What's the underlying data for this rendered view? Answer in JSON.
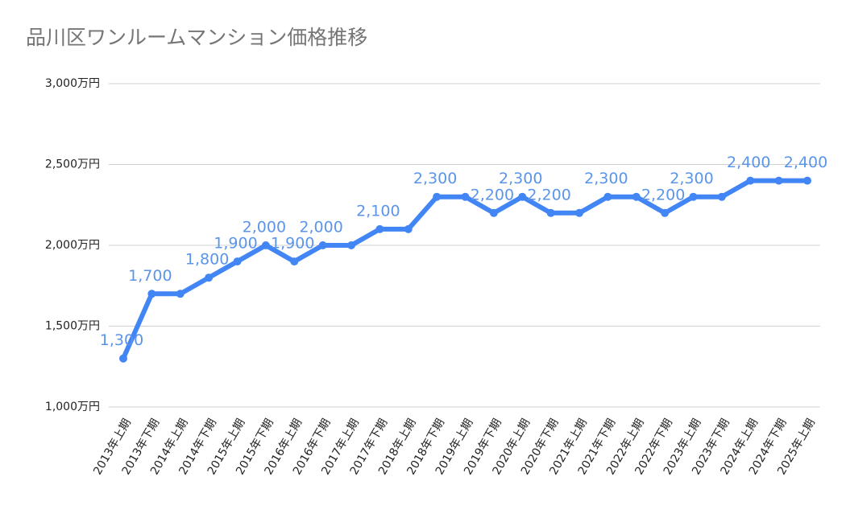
{
  "chart_data": {
    "type": "line",
    "title": "品川区ワンルームマンション価格推移",
    "categories": [
      "2013年上期",
      "2013年下期",
      "2014年上期",
      "2014年下期",
      "2015年上期",
      "2015年下期",
      "2016年上期",
      "2016年下期",
      "2017年上期",
      "2017年下期",
      "2018年上期",
      "2018年下期",
      "2019年上期",
      "2019年下期",
      "2020年上期",
      "2020年下期",
      "2021年上期",
      "2021年下期",
      "2022年上期",
      "2022年下期",
      "2023年上期",
      "2023年下期",
      "2024年上期",
      "2024年下期",
      "2025年上期"
    ],
    "values": [
      1300,
      1700,
      1700,
      1800,
      1900,
      2000,
      1900,
      2000,
      2000,
      2100,
      2100,
      2300,
      2300,
      2200,
      2300,
      2200,
      2200,
      2300,
      2300,
      2200,
      2300,
      2300,
      2400,
      2400,
      2400
    ],
    "value_labels": [
      "1,300",
      "1,700",
      null,
      "1,800",
      "1,900",
      "2,000",
      "1,900",
      "2,000",
      null,
      "2,100",
      null,
      "2,300",
      null,
      "2,200",
      "2,300",
      "2,200",
      null,
      "2,300",
      null,
      "2,200",
      "2,300",
      null,
      "2,400",
      null,
      "2,400"
    ],
    "color": "#4285f4",
    "label_color": "#5b95ea",
    "ylim": [
      1000,
      3000
    ],
    "yticks": [
      {
        "value": 1000,
        "label": "1,000万円"
      },
      {
        "value": 1500,
        "label": "1,500万円"
      },
      {
        "value": 2000,
        "label": "2,000万円"
      },
      {
        "value": 2500,
        "label": "2,500万円"
      },
      {
        "value": 3000,
        "label": "3,000万円"
      }
    ],
    "grid": true
  }
}
